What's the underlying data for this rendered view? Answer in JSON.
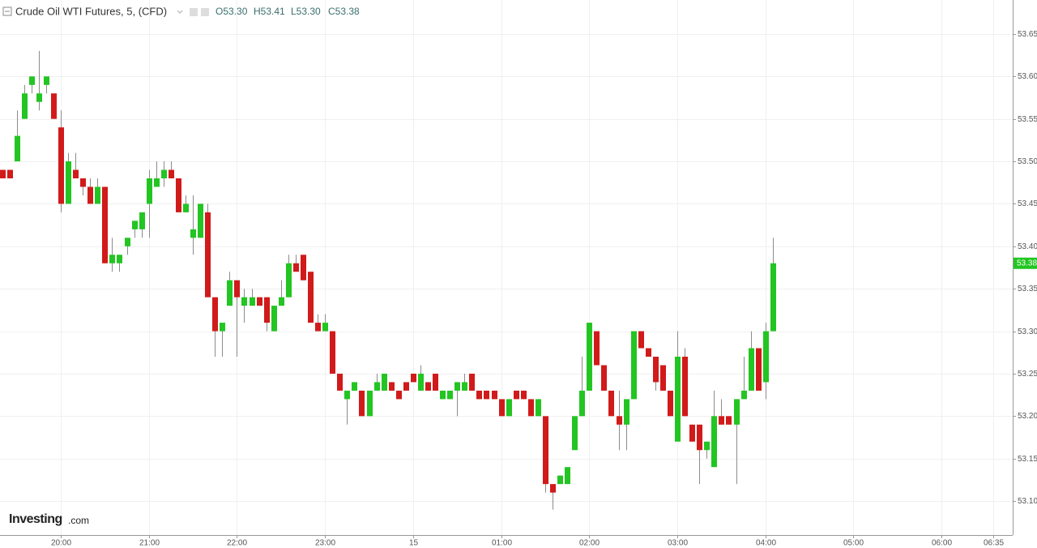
{
  "chart_data": {
    "type": "candlestick",
    "title": "Crude Oil WTI Futures, 5, (CFD)",
    "ohlc_labels": [
      "O53.30",
      "H53.41",
      "L53.30",
      "C53.38"
    ],
    "last_price": 53.38,
    "logo": [
      "Investing",
      ".com"
    ],
    "up_color": "#22c522",
    "down_color": "#d11a1a",
    "wick_color": "#8c8c8c",
    "grid": true,
    "ylim": [
      53.06,
      53.69
    ],
    "yticks": [
      {
        "value": 53.1,
        "label": "53.10"
      },
      53.15,
      {
        "value": 53.2,
        "label": "53.20"
      },
      53.25,
      {
        "value": 53.3,
        "label": "53.30"
      },
      53.35,
      {
        "value": 53.4,
        "label": "53.40"
      },
      53.45,
      {
        "value": 53.5,
        "label": "53.50"
      },
      53.55,
      {
        "value": 53.6,
        "label": "53.60"
      },
      53.65
    ],
    "categories": [
      null,
      null,
      null,
      null,
      null,
      null,
      null,
      null,
      "20:00",
      null,
      null,
      null,
      null,
      null,
      null,
      null,
      null,
      null,
      null,
      null,
      "21:00",
      null,
      null,
      null,
      null,
      null,
      null,
      null,
      null,
      null,
      null,
      null,
      "22:00",
      null,
      null,
      null,
      null,
      null,
      null,
      null,
      null,
      null,
      null,
      null,
      "23:00",
      null,
      null,
      null,
      null,
      null,
      null,
      null,
      null,
      null,
      null,
      null,
      "15",
      null,
      null,
      null,
      null,
      null,
      null,
      null,
      null,
      null,
      null,
      null,
      "01:00",
      null,
      null,
      null,
      null,
      null,
      null,
      null,
      null,
      null,
      null,
      null,
      "02:00",
      null,
      null,
      null,
      null,
      null,
      null,
      null,
      null,
      null,
      null,
      null,
      "03:00",
      null,
      null,
      null,
      null,
      null,
      null,
      null,
      null,
      null,
      null,
      null,
      "04:00",
      null,
      null,
      null,
      null,
      null,
      null,
      null,
      null,
      null,
      null,
      null,
      "05:00",
      null,
      null,
      null,
      null,
      null,
      null,
      null,
      null,
      null,
      null,
      null,
      "06:00",
      null,
      null,
      null,
      null,
      null,
      null,
      "06:35",
      null
    ],
    "open": [
      53.49,
      53.49,
      53.5,
      53.55,
      53.59,
      53.57,
      53.59,
      53.58,
      53.54,
      53.45,
      53.49,
      53.48,
      53.47,
      53.45,
      53.47,
      53.38,
      53.38,
      53.4,
      53.42,
      53.42,
      53.45,
      53.47,
      53.48,
      53.49,
      53.48,
      53.44,
      53.41,
      53.41,
      53.44,
      53.34,
      53.3,
      53.33,
      53.36,
      53.33,
      53.33,
      53.34,
      53.34,
      53.3,
      53.33,
      53.34,
      53.38,
      53.39,
      53.37,
      53.31,
      53.3,
      53.3,
      53.25,
      53.22,
      53.23,
      53.23,
      53.2,
      53.23,
      53.23,
      53.24,
      53.23,
      53.24,
      53.25,
      53.23,
      53.24,
      53.25,
      53.22,
      53.22,
      53.23,
      53.23,
      53.25,
      53.23,
      53.23,
      53.23,
      53.22,
      53.2,
      53.23,
      53.23,
      53.22,
      53.2,
      53.2,
      53.12,
      53.12,
      53.12,
      53.16,
      53.2,
      53.23,
      53.3,
      53.26,
      53.23,
      53.2,
      53.19,
      53.22,
      53.3,
      53.28,
      53.27,
      53.26,
      53.23,
      53.17,
      53.27,
      53.19,
      53.19,
      53.16,
      53.14,
      53.2,
      53.2,
      53.19,
      53.22,
      53.23,
      53.28,
      53.24,
      53.3,
      null,
      null,
      null,
      null,
      null,
      null,
      null,
      null,
      null,
      null,
      null,
      null,
      null,
      null,
      null,
      null,
      null,
      null,
      null,
      null,
      null,
      null,
      null,
      null,
      null,
      null,
      null,
      null,
      null,
      null,
      null
    ],
    "high": [
      53.49,
      53.49,
      53.56,
      53.59,
      53.6,
      53.63,
      53.6,
      53.58,
      53.56,
      53.51,
      53.51,
      53.48,
      53.48,
      53.48,
      53.47,
      53.41,
      53.39,
      53.41,
      53.43,
      53.44,
      53.49,
      53.5,
      53.5,
      53.5,
      53.48,
      53.46,
      53.46,
      53.45,
      53.45,
      53.34,
      53.31,
      53.37,
      53.36,
      53.35,
      53.35,
      53.34,
      53.34,
      53.33,
      53.36,
      53.39,
      53.39,
      53.39,
      53.37,
      53.32,
      53.32,
      53.3,
      53.25,
      53.23,
      53.24,
      53.23,
      53.23,
      53.25,
      53.25,
      53.24,
      53.23,
      53.24,
      53.25,
      53.26,
      53.24,
      53.25,
      53.23,
      53.23,
      53.24,
      53.25,
      53.25,
      53.23,
      53.23,
      53.23,
      53.22,
      53.22,
      53.23,
      53.23,
      53.22,
      53.22,
      53.2,
      53.12,
      53.13,
      53.14,
      53.2,
      53.27,
      53.31,
      53.3,
      53.26,
      53.23,
      53.23,
      53.22,
      53.3,
      53.3,
      53.28,
      53.27,
      53.26,
      53.23,
      53.3,
      53.28,
      53.19,
      53.19,
      53.17,
      53.23,
      53.22,
      53.2,
      53.22,
      53.27,
      53.3,
      53.28,
      53.31,
      53.41,
      null,
      null,
      null,
      null,
      null,
      null,
      null,
      null,
      null,
      null,
      null,
      null,
      null,
      null,
      null,
      null,
      null,
      null,
      null,
      null,
      null,
      null,
      null,
      null,
      null,
      null,
      null,
      null,
      null,
      null,
      null
    ],
    "low": [
      53.48,
      53.48,
      53.5,
      53.55,
      53.58,
      53.56,
      53.58,
      53.55,
      53.44,
      53.45,
      53.48,
      53.46,
      53.45,
      53.45,
      53.38,
      53.37,
      53.37,
      53.39,
      53.41,
      53.41,
      53.41,
      53.47,
      53.47,
      53.48,
      53.44,
      53.44,
      53.39,
      53.41,
      53.34,
      53.27,
      53.27,
      53.33,
      53.27,
      53.31,
      53.33,
      53.33,
      53.3,
      53.3,
      53.33,
      53.34,
      53.37,
      53.36,
      53.31,
      53.3,
      53.3,
      53.25,
      53.23,
      53.19,
      53.23,
      53.2,
      53.2,
      53.23,
      53.23,
      53.23,
      53.22,
      53.23,
      53.24,
      53.23,
      53.23,
      53.23,
      53.22,
      53.22,
      53.2,
      53.23,
      53.23,
      53.22,
      53.22,
      53.22,
      53.2,
      53.2,
      53.22,
      53.22,
      53.2,
      53.2,
      53.11,
      53.09,
      53.12,
      53.12,
      53.16,
      53.2,
      53.23,
      53.26,
      53.23,
      53.2,
      53.16,
      53.16,
      53.22,
      53.28,
      53.27,
      53.23,
      53.23,
      53.2,
      53.17,
      53.2,
      53.17,
      53.12,
      53.15,
      53.14,
      53.19,
      53.19,
      53.12,
      53.22,
      53.23,
      53.23,
      53.22,
      53.3,
      null,
      null,
      null,
      null,
      null,
      null,
      null,
      null,
      null,
      null,
      null,
      null,
      null,
      null,
      null,
      null,
      null,
      null,
      null,
      null,
      null,
      null,
      null,
      null,
      null,
      null,
      null,
      null,
      null,
      null,
      null
    ],
    "close": [
      53.48,
      53.48,
      53.53,
      53.58,
      53.6,
      53.58,
      53.6,
      53.55,
      53.45,
      53.5,
      53.48,
      53.47,
      53.45,
      53.47,
      53.38,
      53.39,
      53.39,
      53.41,
      53.43,
      53.44,
      53.48,
      53.48,
      53.49,
      53.48,
      53.44,
      53.45,
      53.42,
      53.45,
      53.34,
      53.3,
      53.31,
      53.36,
      53.34,
      53.34,
      53.34,
      53.33,
      53.31,
      53.33,
      53.34,
      53.38,
      53.37,
      53.36,
      53.31,
      53.3,
      53.31,
      53.25,
      53.23,
      53.23,
      53.24,
      53.2,
      53.23,
      53.24,
      53.25,
      53.23,
      53.22,
      53.23,
      53.24,
      53.25,
      53.23,
      53.23,
      53.23,
      53.23,
      53.24,
      53.24,
      53.23,
      53.22,
      53.22,
      53.22,
      53.2,
      53.22,
      53.22,
      53.22,
      53.2,
      53.22,
      53.12,
      53.11,
      53.13,
      53.14,
      53.2,
      53.23,
      53.31,
      53.26,
      53.23,
      53.2,
      53.19,
      53.22,
      53.3,
      53.28,
      53.27,
      53.24,
      53.23,
      53.2,
      53.27,
      53.2,
      53.17,
      53.16,
      53.17,
      53.2,
      53.19,
      53.19,
      53.22,
      53.23,
      53.28,
      53.23,
      53.3,
      53.38,
      null,
      null,
      null,
      null,
      null,
      null,
      null,
      null,
      null,
      null,
      null,
      null,
      null,
      null,
      null,
      null,
      null,
      null,
      null,
      null,
      null,
      null,
      null,
      null,
      null,
      null,
      null,
      null,
      null,
      null,
      null
    ]
  }
}
